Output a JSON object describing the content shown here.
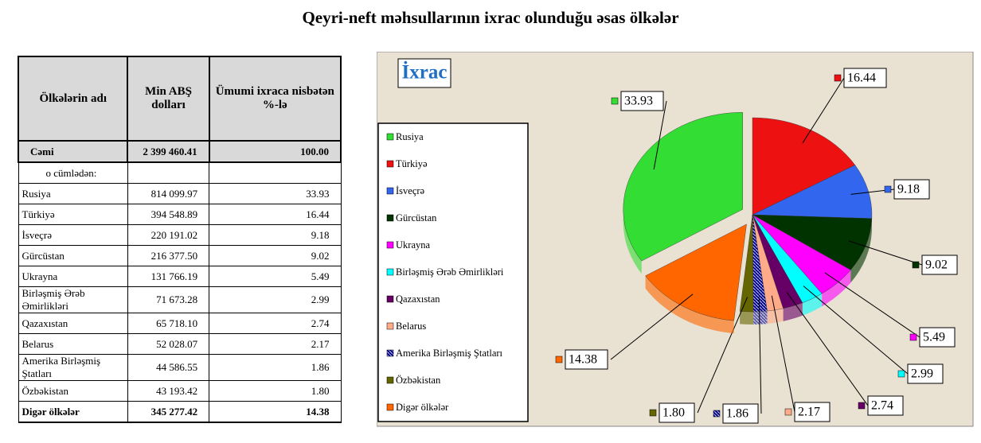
{
  "title": "Qeyri-neft məhsullarının ixrac olunduğu əsas ölkələr",
  "table": {
    "headers": [
      "Ölkələrin adı",
      "Min ABŞ dolları",
      "Ümumi ixraca nisbətən %-lə"
    ],
    "rows": [
      [
        "Cəmi",
        "2 399 460.41",
        "100.00"
      ],
      [
        "o cümlədən:"
      ],
      [
        "Rusiya",
        "814 099.97",
        "33.93"
      ],
      [
        "Türkiyə",
        "394 548.89",
        "16.44"
      ],
      [
        "İsveçrə",
        "220 191.02",
        "9.18"
      ],
      [
        "Gürcüstan",
        "216 377.50",
        "9.02"
      ],
      [
        "Ukrayna",
        "131 766.19",
        "5.49"
      ],
      [
        "Birləşmiş Ərəb Əmirlikləri",
        "71 673.28",
        "2.99"
      ],
      [
        "Qazaxıstan",
        "65 718.10",
        "2.74"
      ],
      [
        "Belarus",
        "52 028.07",
        "2.17"
      ],
      [
        "Amerika Birləşmiş Ştatları",
        "44 586.55",
        "1.86"
      ],
      [
        "Özbəkistan",
        "43 193.42",
        "1.80"
      ],
      [
        "Digər ölkələr",
        "345 277.42",
        "14.38"
      ]
    ]
  },
  "chart_data": {
    "type": "pie",
    "title": "İxrac",
    "categories": [
      "Rusiya",
      "Türkiyə",
      "İsveçrə",
      "Gürcüstan",
      "Ukrayna",
      "Birləşmiş Ərəb Əmirlikləri",
      "Qazaxıstan",
      "Belarus",
      "Amerika Birləşmiş Ştatları",
      "Özbəkistan",
      "Digər ölkələr"
    ],
    "values": [
      33.93,
      16.44,
      9.18,
      9.02,
      5.49,
      2.99,
      2.74,
      2.17,
      1.86,
      1.8,
      14.38
    ],
    "value_labels": [
      "33.93",
      "16.44",
      "9.18",
      "9.02",
      "5.49",
      "2.99",
      "2.74",
      "2.17",
      "1.86",
      "1.80",
      "14.38"
    ],
    "colors": [
      "#33dd33",
      "#ee1111",
      "#3366ee",
      "#003300",
      "#ff00ff",
      "#00ffff",
      "#660066",
      "#ffaa88",
      "#000088",
      "#666600",
      "#ff6600"
    ]
  }
}
